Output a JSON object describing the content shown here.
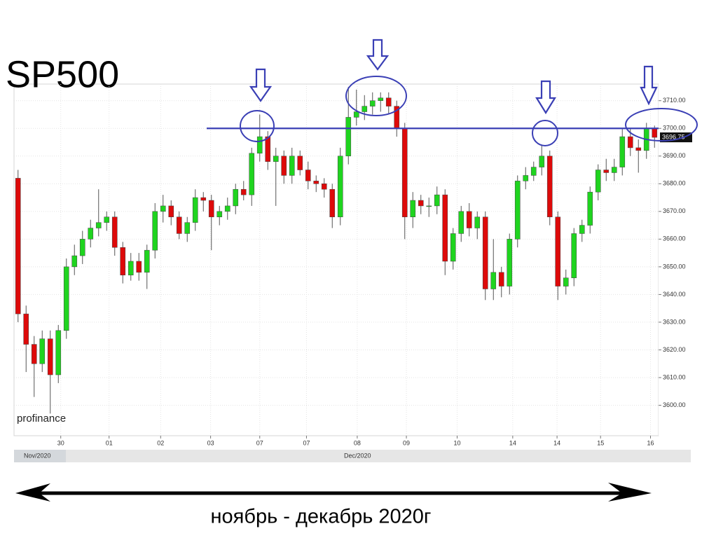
{
  "chart_data": {
    "type": "candlestick",
    "title": "SP500",
    "subtitle": "ноябрь - декабрь 2020г",
    "watermark": "profinance",
    "month_labels": [
      "Nov/2020",
      "Dec/2020"
    ],
    "categories": [
      null,
      null,
      null,
      null,
      null,
      null,
      null,
      null,
      null,
      null,
      null,
      null,
      null,
      null,
      null,
      null,
      null,
      null,
      null,
      null,
      null,
      null,
      null,
      null,
      null,
      null,
      null,
      null,
      null,
      null,
      null,
      null,
      null,
      null,
      null,
      null,
      null,
      null,
      null,
      null,
      null,
      null,
      null,
      null,
      null,
      null,
      null,
      null,
      null,
      null,
      null,
      null,
      null,
      null,
      null,
      null,
      null,
      null,
      null,
      null,
      null,
      null,
      null,
      null,
      null,
      null,
      null,
      null,
      null,
      null,
      null,
      null,
      null,
      null,
      null,
      null,
      null,
      null,
      null,
      null
    ],
    "open": [
      3682,
      3633,
      3622,
      3615,
      3624,
      3611,
      3627,
      3650,
      3654,
      3660,
      3664,
      3666,
      3668,
      3657,
      3647,
      3652,
      3648,
      3656,
      3670,
      3672,
      3668,
      3662,
      3666,
      3675,
      3674,
      3668,
      3670,
      3672,
      3678,
      3676,
      3691,
      3697,
      3688,
      3690,
      3683,
      3690,
      3685,
      3681,
      3680,
      3678,
      3668,
      3690,
      3704,
      3706,
      3708,
      3710,
      3711,
      3708,
      3700,
      3668,
      3674,
      3672,
      3672,
      3676,
      3652,
      3662,
      3670,
      3664,
      3668,
      3642,
      3648,
      3643,
      3660,
      3681,
      3683,
      3686,
      3690,
      3668,
      3643,
      3646,
      3662,
      3665,
      3677,
      3685,
      3684,
      3686,
      3697,
      3693,
      3692,
      3700
    ],
    "high": [
      3685,
      3636,
      3625,
      3627,
      3627,
      3629,
      3653,
      3658,
      3663,
      3667,
      3678,
      3670,
      3670,
      3659,
      3655,
      3655,
      3658,
      3673,
      3676,
      3674,
      3670,
      3668,
      3678,
      3677,
      3676,
      3672,
      3675,
      3680,
      3681,
      3693,
      3705,
      3699,
      3693,
      3692,
      3693,
      3692,
      3688,
      3683,
      3682,
      3680,
      3693,
      3715,
      3714,
      3712,
      3713,
      3713,
      3713,
      3710,
      3702,
      3677,
      3676,
      3675,
      3679,
      3678,
      3664,
      3672,
      3673,
      3670,
      3670,
      3660,
      3650,
      3662,
      3683,
      3686,
      3688,
      3694,
      3692,
      3670,
      3649,
      3664,
      3667,
      3679,
      3687,
      3689,
      3689,
      3700,
      3700,
      3696,
      3702,
      3701
    ],
    "low": [
      3630,
      3612,
      3603,
      3612,
      3597,
      3608,
      3624,
      3647,
      3651,
      3657,
      3661,
      3663,
      3654,
      3644,
      3645,
      3645,
      3642,
      3653,
      3666,
      3665,
      3660,
      3659,
      3663,
      3670,
      3656,
      3665,
      3667,
      3669,
      3674,
      3672,
      3688,
      3685,
      3672,
      3680,
      3680,
      3683,
      3678,
      3677,
      3675,
      3664,
      3665,
      3687,
      3701,
      3703,
      3705,
      3706,
      3705,
      3697,
      3660,
      3664,
      3669,
      3668,
      3669,
      3647,
      3649,
      3659,
      3661,
      3660,
      3638,
      3638,
      3639,
      3640,
      3657,
      3678,
      3681,
      3683,
      3665,
      3638,
      3640,
      3643,
      3659,
      3662,
      3674,
      3681,
      3681,
      3683,
      3690,
      3684,
      3689,
      3693
    ],
    "close": [
      3633,
      3622,
      3615,
      3624,
      3611,
      3627,
      3650,
      3654,
      3660,
      3664,
      3666,
      3668,
      3657,
      3647,
      3652,
      3648,
      3656,
      3670,
      3672,
      3668,
      3662,
      3666,
      3675,
      3674,
      3668,
      3670,
      3672,
      3678,
      3676,
      3691,
      3697,
      3688,
      3690,
      3683,
      3690,
      3685,
      3681,
      3680,
      3678,
      3668,
      3690,
      3704,
      3706,
      3708,
      3710,
      3711,
      3708,
      3700,
      3668,
      3674,
      3672,
      3672,
      3676,
      3652,
      3662,
      3670,
      3664,
      3668,
      3642,
      3648,
      3643,
      3660,
      3681,
      3683,
      3686,
      3690,
      3668,
      3643,
      3646,
      3662,
      3665,
      3677,
      3685,
      3684,
      3686,
      3697,
      3693,
      3692,
      3700,
      3696.75
    ],
    "up_color": "#1fd41f",
    "down_color": "#dd0a0a",
    "level": 3700,
    "level_color": "#3a3fb5",
    "xlim": [
      -0.5,
      79.5
    ],
    "xticks": [
      {
        "value": 5.3,
        "label": "30"
      },
      {
        "value": 11.3,
        "label": "01"
      },
      {
        "value": 17.7,
        "label": "02"
      },
      {
        "value": 23.9,
        "label": "03"
      },
      {
        "value": 30.0,
        "label": "07"
      },
      {
        "value": 35.8,
        "label": "07"
      },
      {
        "value": 42.1,
        "label": "08"
      },
      {
        "value": 48.2,
        "label": "09"
      },
      {
        "value": 54.5,
        "label": "10"
      },
      {
        "value": 61.4,
        "label": "14"
      },
      {
        "value": 66.9,
        "label": "14"
      },
      {
        "value": 72.3,
        "label": "15"
      },
      {
        "value": 78.5,
        "label": "16"
      }
    ],
    "ylim": [
      3589,
      3716
    ],
    "yticks": [
      {
        "value": 3600,
        "label": "3600.00"
      },
      {
        "value": 3610,
        "label": "3610.00"
      },
      {
        "value": 3620,
        "label": "3620.00"
      },
      {
        "value": 3630,
        "label": "3630.00"
      },
      {
        "value": 3640,
        "label": "3640.00"
      },
      {
        "value": 3650,
        "label": "3650.00"
      },
      {
        "value": 3660,
        "label": "3660.00"
      },
      {
        "value": 3670,
        "label": "3670.00"
      },
      {
        "value": 3680,
        "label": "3680.00"
      },
      {
        "value": 3690,
        "label": "3690.00"
      },
      {
        "value": 3700,
        "label": "3700.00"
      },
      {
        "value": 3710,
        "label": "3710.00"
      }
    ],
    "grid": true
  }
}
